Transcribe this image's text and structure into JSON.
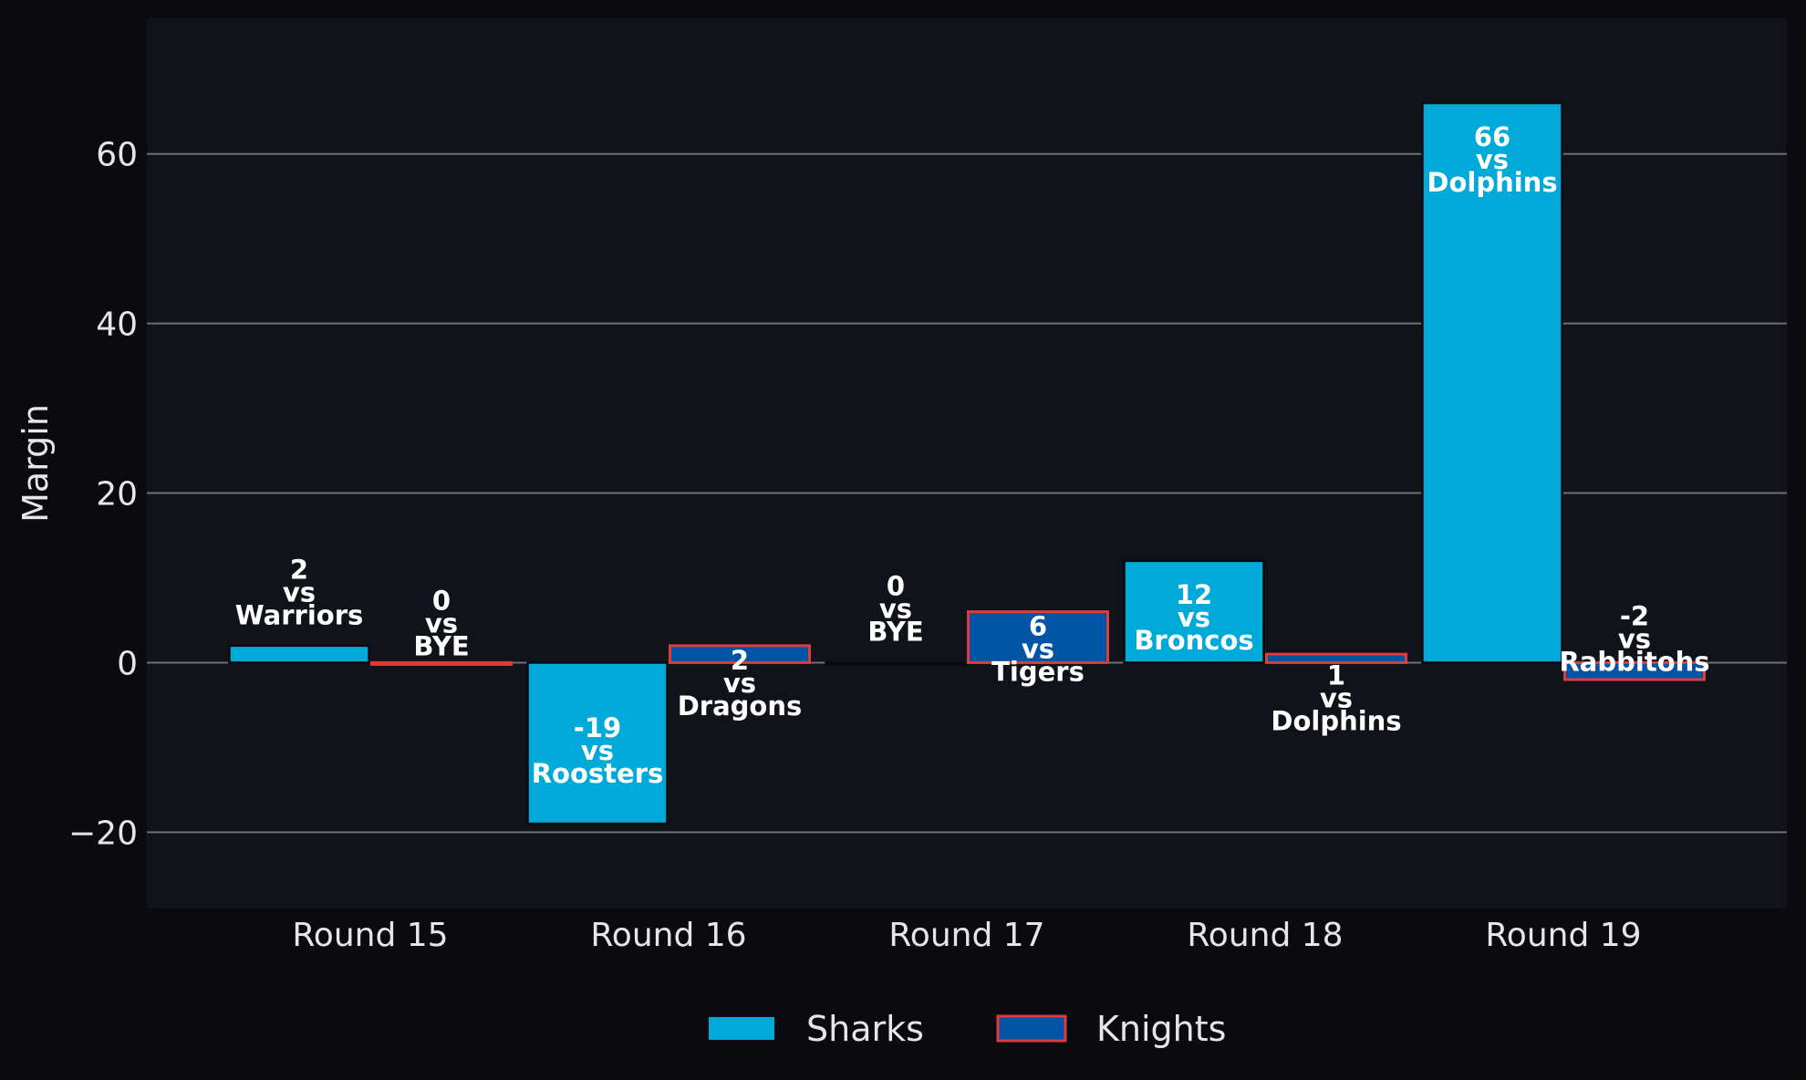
{
  "chart_data": {
    "type": "bar",
    "title": "",
    "xlabel": "",
    "ylabel": "Margin",
    "ylim": [
      -29,
      76
    ],
    "yticks": [
      -20,
      0,
      20,
      40,
      60
    ],
    "ytick_labels": [
      "−20",
      "0",
      "20",
      "40",
      "60"
    ],
    "grid": "horizontal",
    "legend_position": "bottom-center",
    "categories": [
      "Round 15",
      "Round 16",
      "Round 17",
      "Round 18",
      "Round 19"
    ],
    "series": [
      {
        "name": "Sharks",
        "color": "#00aad8",
        "edge_color": "#0b0b0f",
        "values": [
          2,
          -19,
          0,
          12,
          66
        ],
        "labels": [
          "2\nvs\nWarriors",
          "-19\nvs\nRoosters",
          "0\nvs\nBYE",
          "12\nvs\nBroncos",
          "66\nvs\nDolphins"
        ]
      },
      {
        "name": "Knights",
        "color": "#0254a4",
        "edge_color": "#e03a3a",
        "values": [
          0,
          2,
          6,
          1,
          -2
        ],
        "labels": [
          "0\nvs\nBYE",
          "2\nvs\nDragons",
          "6\nvs\nTigers",
          "1\nvs\nDolphins",
          "-2\nvs\nRabbitohs"
        ]
      }
    ]
  }
}
